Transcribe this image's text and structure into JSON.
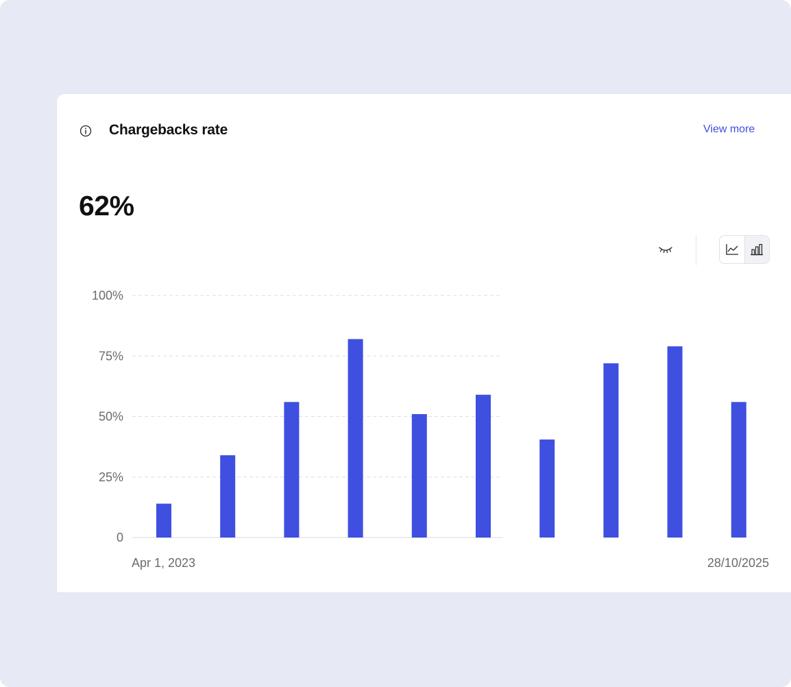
{
  "card": {
    "title": "Chargebacks rate",
    "view_more_label": "View more",
    "big_value": "62%"
  },
  "icons": {
    "info": "info-icon",
    "eye": "eye-closed-icon",
    "line_chart": "line-chart-icon",
    "bar_chart": "bar-chart-icon"
  },
  "colors": {
    "bar": "#3f4fe0",
    "link": "#3f4fe0",
    "background": "#e7e9f4"
  },
  "chart_data": {
    "type": "bar",
    "title": "Chargebacks rate",
    "xlabel": "",
    "ylabel": "",
    "x_start_label": "Apr 1, 2023",
    "x_end_label": "28/10/2025",
    "y_ticks": [
      0,
      25,
      50,
      75,
      100
    ],
    "y_tick_labels": [
      "0",
      "25%",
      "50%",
      "75%",
      "100%"
    ],
    "ylim": [
      0,
      100
    ],
    "grid": true,
    "values": [
      14,
      34,
      56,
      82,
      51,
      59,
      40.5,
      72,
      79,
      56
    ]
  }
}
